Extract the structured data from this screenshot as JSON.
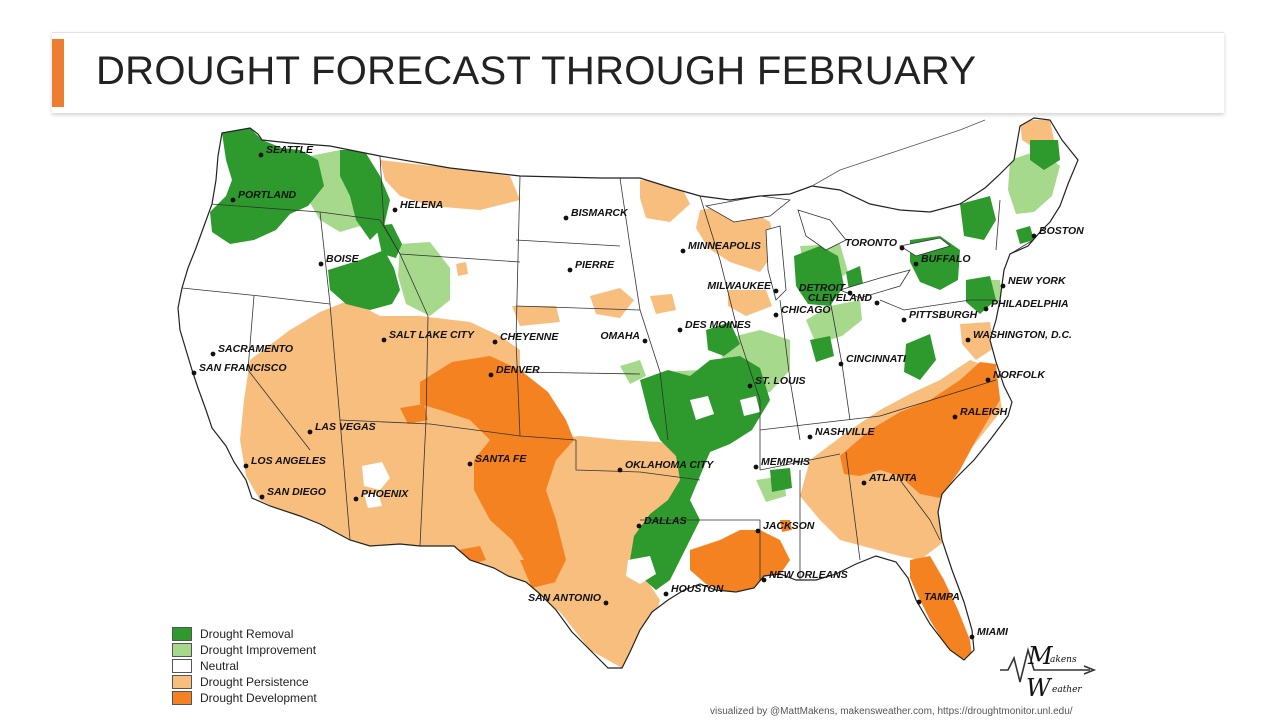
{
  "slide": {
    "title": "DROUGHT FORECAST THROUGH FEBRUARY",
    "accent_color": "#ED7D31"
  },
  "legend": {
    "items": [
      {
        "label": "Drought Removal",
        "color": "#2E9A2E"
      },
      {
        "label": "Drought Improvement",
        "color": "#A6D98C"
      },
      {
        "label": "Neutral",
        "color": "#FFFFFF"
      },
      {
        "label": "Drought Persistence",
        "color": "#F7BE7E"
      },
      {
        "label": "Drought Development",
        "color": "#F58220"
      }
    ]
  },
  "cities": [
    "SEATTLE",
    "PORTLAND",
    "HELENA",
    "BISMARCK",
    "MINNEAPOLIS",
    "TORONTO",
    "BOSTON",
    "BOISE",
    "PIERRE",
    "BUFFALO",
    "MILWAUKEE",
    "DETROIT",
    "NEW YORK",
    "SALT LAKE CITY",
    "CHEYENNE",
    "OMAHA",
    "DES MOINES",
    "CHICAGO",
    "CLEVELAND",
    "PHILADELPHIA",
    "PITTSBURGH",
    "WASHINGTON, D.C.",
    "SACRAMENTO",
    "SAN FRANCISCO",
    "DENVER",
    "ST. LOUIS",
    "CINCINNATI",
    "NORFOLK",
    "LAS VEGAS",
    "NASHVILLE",
    "RALEIGH",
    "LOS ANGELES",
    "SANTA FE",
    "OKLAHOMA CITY",
    "MEMPHIS",
    "ATLANTA",
    "SAN DIEGO",
    "PHOENIX",
    "DALLAS",
    "JACKSON",
    "NEW ORLEANS",
    "HOUSTON",
    "SAN ANTONIO",
    "TAMPA",
    "MIAMI"
  ],
  "credit": "visualized by @MattMakens, makensweather.com, https://droughtmonitor.unl.edu/",
  "logo": {
    "line1": "akens",
    "line2": "eather"
  }
}
